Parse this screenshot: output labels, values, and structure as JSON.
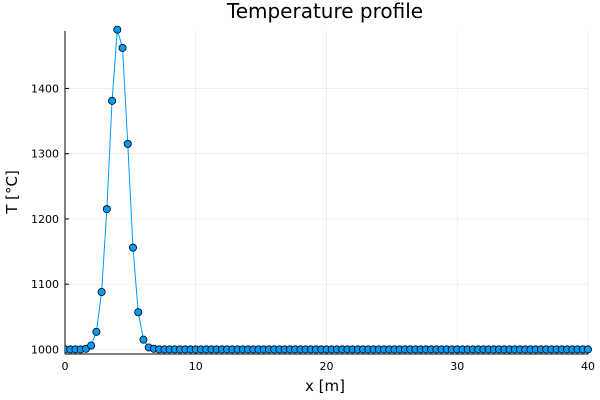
{
  "chart_data": {
    "type": "line",
    "title": "Temperature profile",
    "xlabel": "x [m]",
    "ylabel": "T [°C]",
    "xlim": [
      0,
      40
    ],
    "ylim": [
      993,
      1488
    ],
    "xticks": [
      0,
      10,
      20,
      30,
      40
    ],
    "yticks": [
      1000,
      1100,
      1200,
      1300,
      1400
    ],
    "xtick_labels": [
      "0",
      "10",
      "20",
      "30",
      "40"
    ],
    "ytick_labels": [
      "1000",
      "1100",
      "1200",
      "1300",
      "1400"
    ],
    "grid": true,
    "legend": false,
    "marker": "circle",
    "colors": {
      "series": "#009AFA",
      "marker_edge": "#000000",
      "axis": "#000000"
    },
    "series": [
      {
        "x": [
          0.0,
          0.4,
          0.8,
          1.2,
          1.6,
          2.0,
          2.4,
          2.8,
          3.2,
          3.6,
          4.0,
          4.4,
          4.8,
          5.2,
          5.6,
          6.0,
          6.4,
          6.8,
          7.2,
          7.6,
          8.0,
          8.4,
          8.8,
          9.2,
          9.6,
          10.0,
          10.4,
          10.8,
          11.2,
          11.6,
          12.0,
          12.4,
          12.8,
          13.2,
          13.6,
          14.0,
          14.4,
          14.8,
          15.2,
          15.6,
          16.0,
          16.4,
          16.8,
          17.2,
          17.6,
          18.0,
          18.4,
          18.8,
          19.2,
          19.6,
          20.0,
          20.4,
          20.8,
          21.2,
          21.6,
          22.0,
          22.4,
          22.8,
          23.2,
          23.6,
          24.0,
          24.4,
          24.8,
          25.2,
          25.6,
          26.0,
          26.4,
          26.8,
          27.2,
          27.6,
          28.0,
          28.4,
          28.8,
          29.2,
          29.6,
          30.0,
          30.4,
          30.8,
          31.2,
          31.6,
          32.0,
          32.4,
          32.8,
          33.2,
          33.6,
          34.0,
          34.4,
          34.8,
          35.2,
          35.6,
          36.0,
          36.4,
          36.8,
          37.2,
          37.6,
          38.0,
          38.4,
          38.8,
          39.2,
          39.6,
          40.0
        ],
        "y": [
          1000,
          1000,
          1000,
          1000,
          1001,
          1006,
          1027,
          1088,
          1215,
          1381,
          1490,
          1462,
          1315,
          1156,
          1057,
          1015,
          1003,
          1001,
          1000,
          1000,
          1000,
          1000,
          1000,
          1000,
          1000,
          1000,
          1000,
          1000,
          1000,
          1000,
          1000,
          1000,
          1000,
          1000,
          1000,
          1000,
          1000,
          1000,
          1000,
          1000,
          1000,
          1000,
          1000,
          1000,
          1000,
          1000,
          1000,
          1000,
          1000,
          1000,
          1000,
          1000,
          1000,
          1000,
          1000,
          1000,
          1000,
          1000,
          1000,
          1000,
          1000,
          1000,
          1000,
          1000,
          1000,
          1000,
          1000,
          1000,
          1000,
          1000,
          1000,
          1000,
          1000,
          1000,
          1000,
          1000,
          1000,
          1000,
          1000,
          1000,
          1000,
          1000,
          1000,
          1000,
          1000,
          1000,
          1000,
          1000,
          1000,
          1000,
          1000,
          1000,
          1000,
          1000,
          1000,
          1000,
          1000,
          1000,
          1000,
          1000,
          1000
        ]
      }
    ]
  }
}
